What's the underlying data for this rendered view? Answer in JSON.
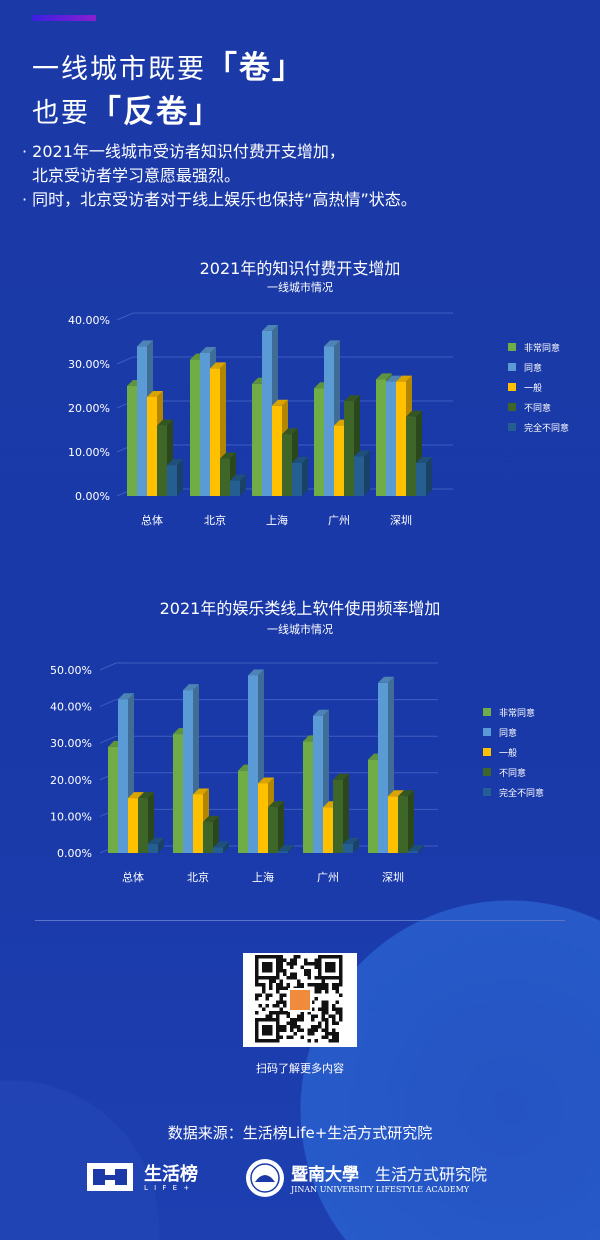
{
  "header": {
    "title_line1": "一线城市既要",
    "title_line1_bold": "「卷」",
    "title_line2": "也要",
    "title_line2_bold": "「反卷」"
  },
  "bullets": [
    "· 2021年一线城市受访者知识付费开支增加，",
    "  北京受访者学习意愿最强烈。",
    "· 同时，北京受访者对于线上娱乐也保持“高热情”状态。"
  ],
  "chart_data": [
    {
      "type": "bar",
      "title": "2021年的知识付费开支增加",
      "subtitle": "一线城市情况",
      "categories": [
        "总体",
        "北京",
        "上海",
        "广州",
        "深圳"
      ],
      "yticks": [
        "0.00%",
        "10.00%",
        "20.00%",
        "30.00%",
        "40.00%"
      ],
      "ylim": [
        0,
        40
      ],
      "grid": true,
      "legend": "right",
      "series": [
        {
          "name": "非常同意",
          "color": "#70ad47",
          "values": [
            25,
            31,
            25.5,
            24.5,
            26.5
          ]
        },
        {
          "name": "同意",
          "color": "#5b9bd5",
          "values": [
            34,
            32.5,
            37.5,
            34,
            26
          ]
        },
        {
          "name": "一般",
          "color": "#ffc000",
          "values": [
            22.5,
            29,
            20.5,
            16,
            26
          ]
        },
        {
          "name": "不同意",
          "color": "#3d6628",
          "values": [
            16,
            8.5,
            14,
            21.5,
            18
          ]
        },
        {
          "name": "完全不同意",
          "color": "#255e91",
          "values": [
            7,
            3.5,
            7.5,
            9,
            7.5
          ]
        }
      ]
    },
    {
      "type": "bar",
      "title": "2021年的娱乐类线上软件使用频率增加",
      "subtitle": "一线城市情况",
      "categories": [
        "总体",
        "北京",
        "上海",
        "广州",
        "深圳"
      ],
      "yticks": [
        "0.00%",
        "10.00%",
        "20.00%",
        "30.00%",
        "40.00%",
        "50.00%"
      ],
      "ylim": [
        0,
        50
      ],
      "grid": true,
      "legend": "right",
      "series": [
        {
          "name": "非常同意",
          "color": "#70ad47",
          "values": [
            29,
            32.5,
            22.5,
            30.5,
            25.5
          ]
        },
        {
          "name": "同意",
          "color": "#5b9bd5",
          "values": [
            42,
            44.5,
            48.5,
            37.5,
            46.5
          ]
        },
        {
          "name": "一般",
          "color": "#ffc000",
          "values": [
            15,
            16,
            19,
            12.5,
            15.5
          ]
        },
        {
          "name": "不同意",
          "color": "#3d6628",
          "values": [
            15,
            8.5,
            12.5,
            20,
            15.5
          ]
        },
        {
          "name": "完全不同意",
          "color": "#255e91",
          "values": [
            2.5,
            1.5,
            0.5,
            2.5,
            0.5
          ]
        }
      ]
    }
  ],
  "qr_caption": "扫码了解更多内容",
  "source": "数据来源：生活榜Life+生活方式研究院",
  "logos": {
    "brand": "生活榜",
    "brand_sub": "L I F E +",
    "university": "暨南大學",
    "institute": "生活方式研究院",
    "university_en": "JINAN UNIVERSITY LIFESTYLE ACADEMY"
  }
}
